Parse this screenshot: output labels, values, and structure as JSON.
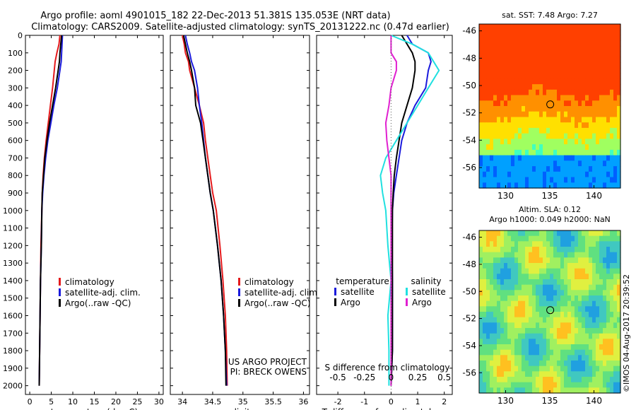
{
  "header": {
    "line1": "Argo profile: aoml 4901015_182 22-Dec-2013 51.381S 135.053E (NRT data)",
    "line2": "Climatology: CARS2009. Satellite-adjusted climatology: synTS_20131222.nc (0.47d earlier)"
  },
  "depth_ticks": [
    0,
    100,
    200,
    300,
    400,
    500,
    600,
    700,
    800,
    900,
    1000,
    1100,
    1200,
    1300,
    1400,
    1500,
    1600,
    1700,
    1800,
    1900,
    2000
  ],
  "colors": {
    "climatology": "#e41a1c",
    "satellite": "#1a1adc",
    "argo": "#000000",
    "argo_salinity_diff": "#e020d0",
    "satellite_salinity_diff": "#20e0e0"
  },
  "chart_data": [
    {
      "type": "line",
      "panel": "temperature",
      "xlabel": "temperature (deg C)",
      "xlim": [
        -1,
        31
      ],
      "ylim": [
        2050,
        0
      ],
      "xticks": [
        0,
        5,
        10,
        15,
        20,
        25,
        30
      ],
      "xtick_labels": [
        "0",
        "5",
        "10",
        "15",
        "20",
        "25",
        "30"
      ],
      "legend": [
        "climatology",
        "satellite-adj. clim.",
        "Argo(..raw -QC)"
      ],
      "depth": [
        0,
        50,
        100,
        150,
        200,
        300,
        400,
        500,
        600,
        700,
        800,
        900,
        1000,
        1200,
        1400,
        1600,
        1800,
        2000
      ],
      "series": [
        {
          "name": "climatology",
          "color": "#e41a1c",
          "values": [
            7.0,
            6.8,
            6.3,
            5.9,
            5.7,
            5.3,
            4.8,
            4.3,
            3.8,
            3.4,
            3.1,
            2.9,
            2.8,
            2.6,
            2.5,
            2.4,
            2.3,
            2.2
          ]
        },
        {
          "name": "satellite-adj. clim.",
          "color": "#1a1adc",
          "values": [
            7.6,
            7.5,
            7.4,
            7.3,
            7.0,
            6.4,
            5.6,
            4.9,
            4.2,
            3.7,
            3.3,
            3.0,
            2.8,
            2.7,
            2.5,
            2.4,
            2.3,
            2.2
          ]
        },
        {
          "name": "Argo(..raw -QC)",
          "color": "#000000",
          "values": [
            7.4,
            7.2,
            7.0,
            6.9,
            6.6,
            6.0,
            5.3,
            4.6,
            4.0,
            3.5,
            3.2,
            2.9,
            2.8,
            2.7,
            2.5,
            2.4,
            2.3,
            2.2
          ]
        }
      ]
    },
    {
      "type": "line",
      "panel": "salinity",
      "xlabel": "salinity",
      "xlim": [
        33.8,
        36.1
      ],
      "ylim": [
        2050,
        0
      ],
      "xticks": [
        34,
        34.5,
        35,
        35.5,
        36
      ],
      "xtick_labels": [
        "34",
        "34.5",
        "35",
        "35.5",
        "36"
      ],
      "legend": [
        "climatology",
        "satellite-adj. clim.",
        "Argo(..raw -QC)"
      ],
      "annotation": [
        "US ARGO PROJECT",
        "PI: BRECK OWENS"
      ],
      "depth": [
        0,
        50,
        100,
        150,
        200,
        300,
        400,
        500,
        600,
        700,
        800,
        900,
        1000,
        1200,
        1400,
        1600,
        1800,
        2000
      ],
      "series": [
        {
          "name": "climatology",
          "color": "#e41a1c",
          "values": [
            34.0,
            34.03,
            34.05,
            34.1,
            34.12,
            34.2,
            34.28,
            34.35,
            34.38,
            34.42,
            34.46,
            34.5,
            34.56,
            34.62,
            34.67,
            34.71,
            34.73,
            34.74
          ]
        },
        {
          "name": "satellite-adj. clim.",
          "color": "#1a1adc",
          "values": [
            34.05,
            34.08,
            34.12,
            34.15,
            34.2,
            34.25,
            34.28,
            34.32,
            34.35,
            34.38,
            34.42,
            34.46,
            34.51,
            34.58,
            34.64,
            34.68,
            34.71,
            34.73
          ]
        },
        {
          "name": "Argo(..raw -QC)",
          "color": "#000000",
          "values": [
            34.02,
            34.05,
            34.08,
            34.12,
            34.15,
            34.2,
            34.22,
            34.3,
            34.34,
            34.38,
            34.42,
            34.46,
            34.51,
            34.58,
            34.64,
            34.68,
            34.71,
            34.72
          ]
        }
      ]
    },
    {
      "type": "line",
      "panel": "difference",
      "xlabel": "T difference from climatology",
      "xlabel_top": "S difference from climatology",
      "xlim": [
        -2.8,
        2.3
      ],
      "ylim": [
        2050,
        0
      ],
      "xticks": [
        -2,
        -1,
        0,
        1,
        2
      ],
      "xtick_labels": [
        "-2",
        "-1",
        "0",
        "1",
        "2"
      ],
      "s_ticks": [
        -0.5,
        -0.25,
        0,
        0.25,
        0.5
      ],
      "s_tick_labels": [
        "-0.5",
        "-0.25",
        "0",
        "0.25",
        "0.5"
      ],
      "legend_titles": [
        "temperature",
        "salinity"
      ],
      "legend": [
        "satellite",
        "Argo",
        "satellite",
        "Argo"
      ],
      "depth": [
        0,
        50,
        100,
        150,
        200,
        300,
        400,
        500,
        600,
        700,
        800,
        900,
        1000,
        1200,
        1400,
        1600,
        1800,
        2000
      ],
      "series": [
        {
          "name": "satellite",
          "color": "#1a1adc",
          "values": [
            0.6,
            0.8,
            1.4,
            1.5,
            1.4,
            1.3,
            0.9,
            0.6,
            0.4,
            0.3,
            0.2,
            0.1,
            0.05,
            0.03,
            0.05,
            0.05,
            0.05,
            0.0
          ]
        },
        {
          "name": "Argo",
          "color": "#000000",
          "values": [
            0.4,
            0.6,
            0.8,
            0.9,
            0.9,
            0.8,
            0.6,
            0.4,
            0.3,
            0.2,
            0.12,
            0.08,
            0.05,
            0.05,
            0.05,
            0.05,
            0.05,
            0.0
          ]
        },
        {
          "name": "satellite",
          "color": "#20e0e0",
          "values": [
            0.0,
            0.2,
            0.35,
            0.4,
            0.45,
            0.35,
            0.25,
            0.15,
            0.05,
            -0.05,
            -0.1,
            -0.08,
            -0.05,
            -0.03,
            0.0,
            -0.03,
            -0.02,
            -0.02
          ]
        },
        {
          "name": "Argo",
          "color": "#e020d0",
          "values": [
            0.0,
            0.0,
            0.0,
            0.05,
            0.05,
            0.0,
            -0.02,
            -0.05,
            -0.04,
            -0.02,
            0.0,
            0.0,
            0.0,
            0.0,
            0.0,
            0.0,
            0.0,
            0.0
          ]
        }
      ]
    },
    {
      "type": "heatmap",
      "panel": "sst_map",
      "title": "sat. SST: 7.48 Argo: 7.27",
      "xlim": [
        127,
        143
      ],
      "ylim": [
        -57.5,
        -45.5
      ],
      "xticks": [
        130,
        135,
        140
      ],
      "xtick_labels": [
        "130",
        "135",
        "140"
      ],
      "yticks": [
        -46,
        -48,
        -50,
        -52,
        -54,
        -56
      ],
      "ytick_labels": [
        "-46",
        "-48",
        "-50",
        "-52",
        "-54",
        "-56"
      ],
      "marker": [
        135.05,
        -51.38
      ]
    },
    {
      "type": "heatmap",
      "panel": "sla_map",
      "title": [
        "Altim. SLA: 0.12",
        "Argo h1000: 0.049 h2000: NaN"
      ],
      "xlim": [
        127,
        143
      ],
      "ylim": [
        -57.5,
        -45.5
      ],
      "xticks": [
        130,
        135,
        140
      ],
      "xtick_labels": [
        "130",
        "135",
        "140"
      ],
      "yticks": [
        -46,
        -48,
        -50,
        -52,
        -54,
        -56
      ],
      "ytick_labels": [
        "-46",
        "-48",
        "-50",
        "-52",
        "-54",
        "-56"
      ],
      "marker": [
        135.05,
        -51.38
      ]
    }
  ],
  "credit": "©IMOS 04-Aug-2017 20:39:52"
}
